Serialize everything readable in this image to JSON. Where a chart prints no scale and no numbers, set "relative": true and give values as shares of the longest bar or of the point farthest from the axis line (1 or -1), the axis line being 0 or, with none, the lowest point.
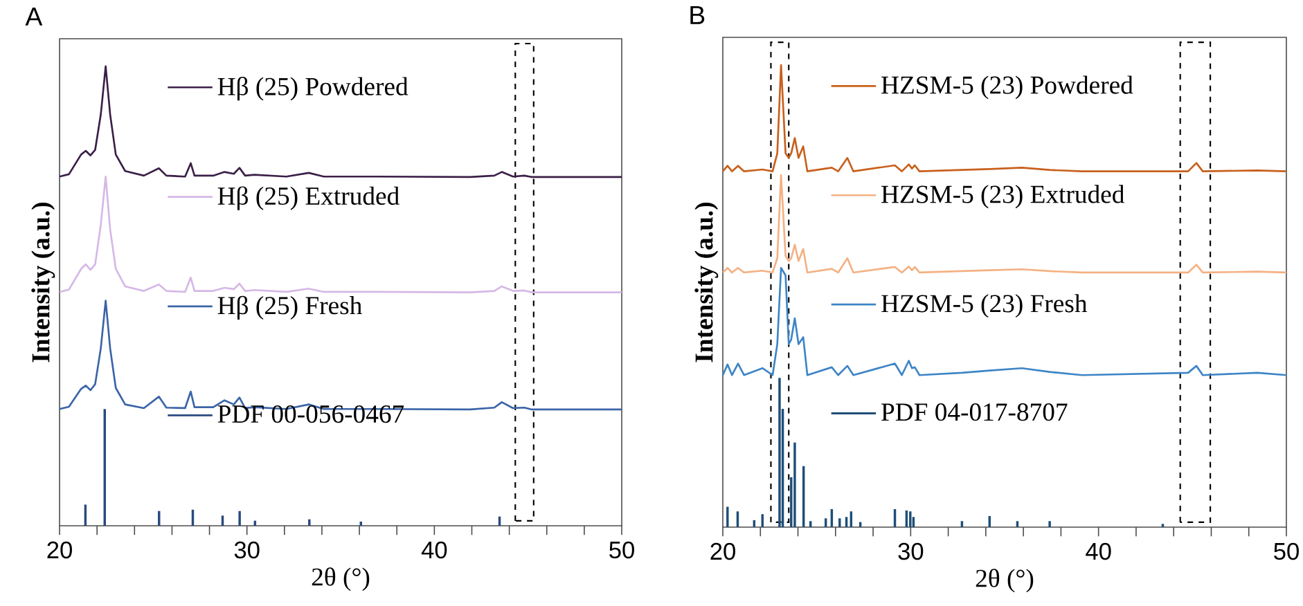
{
  "chart_data": [
    {
      "type": "line",
      "title": "A",
      "xlabel": "2θ (°)",
      "ylabel": "Intensity (a.u.)",
      "relative": true,
      "xlim": [
        20,
        50
      ],
      "xticks": [
        20,
        30,
        40,
        50
      ],
      "legend": "top left",
      "series": [
        {
          "name": "Hβ (25) Powdered",
          "color": "#3b1f47",
          "x": [
            20,
            20.5,
            21.15,
            21.4,
            21.65,
            21.9,
            22.2,
            22.46,
            22.7,
            23,
            23.5,
            24.5,
            25.3,
            25.7,
            26.7,
            27.0,
            27.2,
            28.2,
            28.8,
            29.3,
            29.6,
            29.9,
            30.4,
            32.1,
            33.3,
            34.1,
            37,
            41.9,
            43.2,
            43.6,
            44.2,
            44.8,
            45.2,
            50
          ],
          "values": [
            0.76,
            0.765,
            0.808,
            0.816,
            0.806,
            0.818,
            0.895,
            1.0,
            0.895,
            0.808,
            0.772,
            0.762,
            0.778,
            0.762,
            0.76,
            0.789,
            0.762,
            0.762,
            0.77,
            0.766,
            0.779,
            0.762,
            0.764,
            0.76,
            0.768,
            0.76,
            0.76,
            0.759,
            0.762,
            0.77,
            0.76,
            0.762,
            0.759,
            0.759
          ]
        },
        {
          "name": "Hβ (25) Extruded",
          "color": "#d5b8e6",
          "x": [
            20,
            20.5,
            21.15,
            21.4,
            21.65,
            21.9,
            22.2,
            22.46,
            22.7,
            23,
            23.5,
            24.5,
            25.3,
            25.7,
            26.7,
            27.0,
            27.2,
            28.2,
            28.8,
            29.3,
            29.6,
            29.9,
            30.4,
            32.1,
            33.3,
            34.1,
            37,
            41.9,
            43.2,
            43.6,
            44.2,
            44.8,
            45.2,
            50
          ],
          "values": [
            0.509,
            0.514,
            0.559,
            0.569,
            0.557,
            0.569,
            0.655,
            0.76,
            0.645,
            0.559,
            0.521,
            0.511,
            0.525,
            0.511,
            0.509,
            0.54,
            0.511,
            0.511,
            0.518,
            0.515,
            0.527,
            0.511,
            0.513,
            0.509,
            0.516,
            0.509,
            0.509,
            0.508,
            0.511,
            0.521,
            0.511,
            0.512,
            0.508,
            0.508
          ]
        },
        {
          "name": "Hβ (25) Fresh",
          "color": "#3a64a8",
          "x": [
            20,
            20.5,
            21.15,
            21.4,
            21.65,
            21.9,
            22.2,
            22.46,
            22.7,
            23,
            23.5,
            24.5,
            25.3,
            25.7,
            26.7,
            27.0,
            27.2,
            28.2,
            28.8,
            29.3,
            29.6,
            29.9,
            30.4,
            32.1,
            33.3,
            34.1,
            37,
            41.9,
            43.2,
            43.6,
            44.2,
            44.8,
            45.2,
            50
          ],
          "values": [
            0.254,
            0.259,
            0.298,
            0.305,
            0.295,
            0.308,
            0.386,
            0.49,
            0.386,
            0.3,
            0.264,
            0.256,
            0.281,
            0.257,
            0.256,
            0.292,
            0.258,
            0.258,
            0.273,
            0.264,
            0.279,
            0.256,
            0.258,
            0.254,
            0.264,
            0.254,
            0.254,
            0.253,
            0.257,
            0.269,
            0.256,
            0.257,
            0.253,
            0.253
          ]
        },
        {
          "name": "PDF 00-056-0467",
          "color": "#2a4a7f",
          "type": "bar",
          "x": [
            21.38,
            22.41,
            25.31,
            27.11,
            28.7,
            29.61,
            30.43,
            33.33,
            36.08,
            43.48
          ],
          "values": [
            0.046,
            0.254,
            0.032,
            0.035,
            0.022,
            0.032,
            0.011,
            0.014,
            0.009,
            0.02
          ]
        }
      ],
      "bands": [
        {
          "axis": "x",
          "from": 44.32,
          "to": 45.3,
          "color": "#000000"
        }
      ]
    },
    {
      "type": "line",
      "title": "B",
      "xlabel": "2θ (°)",
      "ylabel": "Intensity (a.u.)",
      "relative": true,
      "xlim": [
        20,
        50
      ],
      "xticks": [
        20,
        30,
        40,
        50
      ],
      "legend": "top left",
      "series": [
        {
          "name": "HZSM-5 (23) Powdered",
          "color": "#c8601c",
          "x": [
            20,
            20.25,
            20.49,
            20.81,
            21.13,
            22.11,
            22.65,
            22.9,
            23.1,
            23.34,
            23.51,
            23.64,
            23.83,
            24.03,
            24.28,
            24.5,
            25.8,
            26.14,
            26.63,
            26.95,
            29.16,
            29.53,
            29.9,
            30.07,
            30.22,
            30.47,
            32.73,
            34.2,
            35.92,
            37.4,
            39.12,
            44.77,
            45.21,
            45.55,
            48.45,
            50
          ],
          "values": [
            0.77,
            0.782,
            0.77,
            0.782,
            0.77,
            0.774,
            0.77,
            0.809,
            1.0,
            0.809,
            0.799,
            0.809,
            0.842,
            0.799,
            0.824,
            0.77,
            0.778,
            0.77,
            0.799,
            0.77,
            0.783,
            0.77,
            0.785,
            0.776,
            0.783,
            0.77,
            0.773,
            0.775,
            0.778,
            0.773,
            0.77,
            0.77,
            0.788,
            0.77,
            0.772,
            0.77
          ]
        },
        {
          "name": "HZSM-5 (23) Extruded",
          "color": "#f4b183",
          "x": [
            20,
            20.25,
            20.49,
            20.81,
            21.13,
            22.11,
            22.65,
            22.9,
            23.1,
            23.34,
            23.51,
            23.64,
            23.83,
            24.03,
            24.28,
            24.5,
            25.8,
            26.14,
            26.63,
            26.95,
            29.16,
            29.53,
            29.9,
            30.07,
            30.22,
            30.47,
            32.73,
            34.2,
            35.92,
            37.4,
            39.12,
            44.77,
            45.21,
            45.55,
            48.45,
            50
          ],
          "values": [
            0.551,
            0.561,
            0.551,
            0.561,
            0.551,
            0.555,
            0.551,
            0.582,
            0.762,
            0.587,
            0.576,
            0.582,
            0.611,
            0.576,
            0.602,
            0.551,
            0.559,
            0.551,
            0.582,
            0.551,
            0.563,
            0.551,
            0.564,
            0.556,
            0.563,
            0.551,
            0.554,
            0.556,
            0.558,
            0.554,
            0.551,
            0.551,
            0.568,
            0.551,
            0.553,
            0.551
          ]
        },
        {
          "name": "HZSM-5 (23) Fresh",
          "color": "#3d85c6",
          "x": [
            20,
            20.25,
            20.49,
            20.81,
            21.13,
            22.11,
            22.65,
            22.9,
            23.1,
            23.34,
            23.51,
            23.64,
            23.83,
            24.03,
            24.28,
            24.5,
            25.8,
            26.14,
            26.63,
            26.95,
            29.16,
            29.53,
            29.9,
            30.07,
            30.22,
            30.47,
            32.73,
            34.2,
            35.92,
            37.4,
            39.12,
            44.77,
            45.21,
            45.55,
            48.45,
            50
          ],
          "values": [
            0.329,
            0.352,
            0.329,
            0.354,
            0.329,
            0.344,
            0.329,
            0.396,
            0.561,
            0.545,
            0.396,
            0.406,
            0.452,
            0.396,
            0.411,
            0.329,
            0.346,
            0.329,
            0.349,
            0.329,
            0.354,
            0.329,
            0.36,
            0.344,
            0.346,
            0.329,
            0.334,
            0.339,
            0.344,
            0.336,
            0.329,
            0.334,
            0.349,
            0.329,
            0.334,
            0.329
          ]
        },
        {
          "name": "PDF 04-017-8707",
          "color": "#1f4e79",
          "type": "bar",
          "x": [
            20.25,
            20.79,
            21.67,
            22.11,
            23.02,
            23.19,
            23.64,
            23.83,
            24.3,
            24.67,
            25.48,
            25.8,
            26.22,
            26.58,
            26.83,
            27.32,
            29.16,
            29.78,
            29.98,
            30.15,
            32.73,
            34.2,
            35.68,
            37.4,
            43.42
          ],
          "values": [
            0.044,
            0.034,
            0.015,
            0.028,
            0.323,
            0.256,
            0.108,
            0.183,
            0.132,
            0.013,
            0.019,
            0.039,
            0.019,
            0.022,
            0.034,
            0.011,
            0.039,
            0.036,
            0.034,
            0.022,
            0.013,
            0.024,
            0.013,
            0.013,
            0.007
          ]
        }
      ],
      "bands": [
        {
          "axis": "x",
          "from": 22.56,
          "to": 23.51,
          "color": "#000000"
        },
        {
          "axis": "x",
          "from": 44.35,
          "to": 45.95,
          "color": "#000000"
        }
      ]
    }
  ]
}
